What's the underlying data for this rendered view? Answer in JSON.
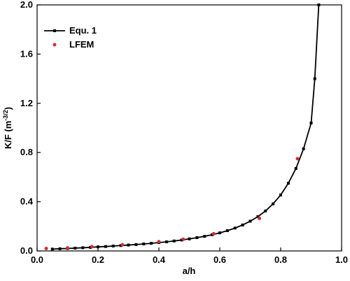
{
  "chart_data": {
    "type": "line",
    "x_label": "a/h",
    "y_label": [
      "K/F (m",
      "-3/2",
      ")"
    ],
    "xlim": [
      0,
      1.0
    ],
    "ylim": [
      0,
      2.0
    ],
    "xticks": [
      {
        "value": 0,
        "label": "0.0"
      },
      0.2,
      0.4,
      0.6,
      0.8,
      {
        "value": 1.0,
        "label": "1.0"
      }
    ],
    "yticks": [
      {
        "value": 0,
        "label": "0.0"
      },
      0.4,
      0.8,
      1.2,
      1.6,
      {
        "value": 2.0,
        "label": "2.0"
      }
    ],
    "legend": "upper left",
    "series": [
      {
        "name": "Equ. 1",
        "color": "#000000",
        "style": "line",
        "x": [
          0.05,
          0.075,
          0.1,
          0.125,
          0.15,
          0.175,
          0.2,
          0.225,
          0.25,
          0.275,
          0.3,
          0.325,
          0.35,
          0.375,
          0.4,
          0.425,
          0.45,
          0.475,
          0.5,
          0.525,
          0.55,
          0.575,
          0.6,
          0.625,
          0.65,
          0.675,
          0.7,
          0.725,
          0.75,
          0.775,
          0.8,
          0.825,
          0.85,
          0.875,
          0.9,
          0.912,
          0.925
        ],
        "values": [
          0.015,
          0.018,
          0.02,
          0.023,
          0.026,
          0.029,
          0.033,
          0.036,
          0.04,
          0.044,
          0.048,
          0.052,
          0.057,
          0.062,
          0.068,
          0.074,
          0.081,
          0.089,
          0.098,
          0.108,
          0.119,
          0.132,
          0.147,
          0.165,
          0.186,
          0.211,
          0.242,
          0.279,
          0.325,
          0.383,
          0.455,
          0.55,
          0.67,
          0.83,
          1.04,
          1.4,
          2.0
        ]
      },
      {
        "name": "LFEM",
        "color": "#d03030",
        "style": "scatter",
        "x": [
          0.03,
          0.1,
          0.18,
          0.28,
          0.4,
          0.48,
          0.58,
          0.73,
          0.855
        ],
        "values": [
          0.02,
          0.025,
          0.035,
          0.05,
          0.075,
          0.095,
          0.14,
          0.265,
          0.75
        ]
      }
    ]
  }
}
